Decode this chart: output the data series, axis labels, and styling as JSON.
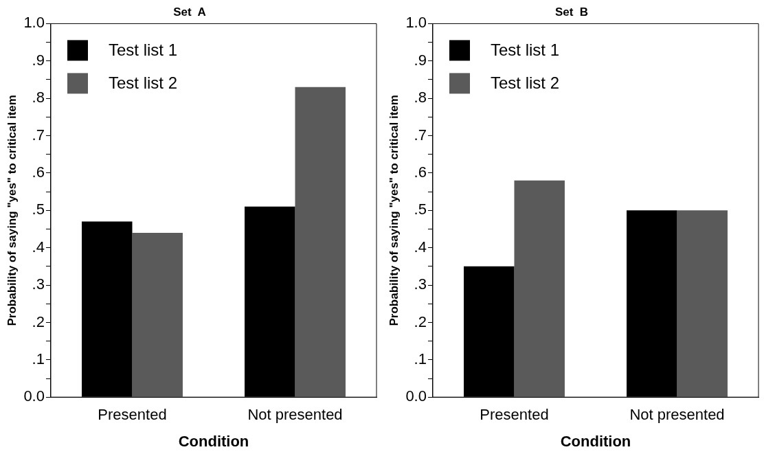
{
  "chart_data": [
    {
      "type": "bar",
      "title": "Set  A",
      "xlabel": "Condition",
      "ylabel": "Probability of saying \"yes\" to critical item",
      "categories": [
        "Presented",
        "Not presented"
      ],
      "series": [
        {
          "name": "Test list 1",
          "color": "#000000",
          "values": [
            0.47,
            0.51
          ]
        },
        {
          "name": "Test list 2",
          "color": "#5a5a5a",
          "values": [
            0.44,
            0.83
          ]
        }
      ],
      "ylim": [
        0,
        1
      ],
      "yticks": [
        {
          "value": 0,
          "label": "0.0"
        },
        {
          "value": 0.05,
          "label": null
        },
        {
          "value": 0.1,
          "label": ".1"
        },
        {
          "value": 0.15,
          "label": null
        },
        {
          "value": 0.2,
          "label": ".2"
        },
        {
          "value": 0.25,
          "label": null
        },
        {
          "value": 0.3,
          "label": ".3"
        },
        {
          "value": 0.35,
          "label": null
        },
        {
          "value": 0.4,
          "label": ".4"
        },
        {
          "value": 0.45,
          "label": null
        },
        {
          "value": 0.5,
          "label": ".5"
        },
        {
          "value": 0.55,
          "label": null
        },
        {
          "value": 0.6,
          "label": ".6"
        },
        {
          "value": 0.65,
          "label": null
        },
        {
          "value": 0.7,
          "label": ".7"
        },
        {
          "value": 0.75,
          "label": null
        },
        {
          "value": 0.8,
          "label": ".8"
        },
        {
          "value": 0.85,
          "label": null
        },
        {
          "value": 0.9,
          "label": ".9"
        },
        {
          "value": 0.95,
          "label": null
        },
        {
          "value": 1,
          "label": "1.0"
        }
      ],
      "grid": false,
      "legend": "top left"
    },
    {
      "type": "bar",
      "title": "Set  B",
      "xlabel": "Condition",
      "ylabel": "Probability of saying \"yes\" to critical item",
      "categories": [
        "Presented",
        "Not presented"
      ],
      "series": [
        {
          "name": "Test list 1",
          "color": "#000000",
          "values": [
            0.35,
            0.5
          ]
        },
        {
          "name": "Test list 2",
          "color": "#5a5a5a",
          "values": [
            0.58,
            0.5
          ]
        }
      ],
      "ylim": [
        0,
        1
      ],
      "yticks": [
        {
          "value": 0,
          "label": "0.0"
        },
        {
          "value": 0.05,
          "label": null
        },
        {
          "value": 0.1,
          "label": ".1"
        },
        {
          "value": 0.15,
          "label": null
        },
        {
          "value": 0.2,
          "label": ".2"
        },
        {
          "value": 0.25,
          "label": null
        },
        {
          "value": 0.3,
          "label": ".3"
        },
        {
          "value": 0.35,
          "label": null
        },
        {
          "value": 0.4,
          "label": ".4"
        },
        {
          "value": 0.45,
          "label": null
        },
        {
          "value": 0.5,
          "label": ".5"
        },
        {
          "value": 0.55,
          "label": null
        },
        {
          "value": 0.6,
          "label": ".6"
        },
        {
          "value": 0.65,
          "label": null
        },
        {
          "value": 0.7,
          "label": ".7"
        },
        {
          "value": 0.75,
          "label": null
        },
        {
          "value": 0.8,
          "label": ".8"
        },
        {
          "value": 0.85,
          "label": null
        },
        {
          "value": 0.9,
          "label": ".9"
        },
        {
          "value": 0.95,
          "label": null
        },
        {
          "value": 1,
          "label": "1.0"
        }
      ],
      "grid": false,
      "legend": "top left"
    }
  ]
}
